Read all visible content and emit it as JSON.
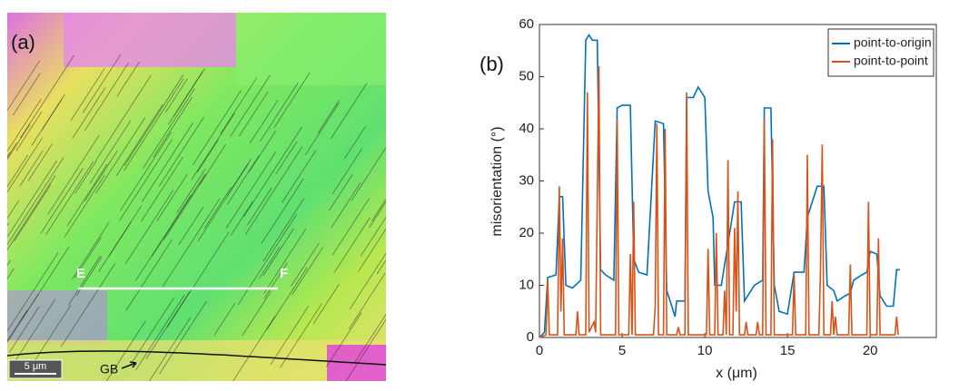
{
  "panel_a": {
    "label": "(a)",
    "start": "E",
    "end": "F",
    "annotation": "GB",
    "scale_bar": "5 μm"
  },
  "chart_data": {
    "type": "line",
    "panel_label": "(b)",
    "x_label": "x (μm)",
    "y_label": "misorientation (°)",
    "xlim": [
      0,
      24
    ],
    "ylim": [
      0,
      60
    ],
    "xticks": [
      0,
      5,
      10,
      15,
      20
    ],
    "yticks": [
      0,
      10,
      20,
      30,
      40,
      50,
      60
    ],
    "legend": "upper right",
    "series": [
      {
        "name": "point-to-origin",
        "color": "#0072bd",
        "x": [
          0,
          0.3,
          0.5,
          1,
          1.2,
          1.4,
          1.6,
          2,
          2.5,
          2.8,
          3,
          3.2,
          3.5,
          3.7,
          4,
          4.5,
          4.7,
          5,
          5.5,
          5.7,
          6,
          6.5,
          7,
          7.5,
          7.7,
          8,
          8.2,
          8.3,
          8.8,
          8.9,
          9.3,
          9.6,
          10,
          10.2,
          10.5,
          10.6,
          11,
          11.3,
          11.8,
          12.2,
          12.4,
          13,
          13.5,
          13.6,
          14,
          14.2,
          14.5,
          15,
          15.4,
          16,
          16.2,
          16.5,
          16.8,
          17.2,
          17.4,
          17.8,
          18,
          18.5,
          18.8,
          19,
          19.5,
          19.8,
          20,
          20.4,
          20.6,
          21,
          21.4,
          21.6,
          21.8
        ],
        "values": [
          0,
          1,
          11.5,
          12,
          27,
          27,
          10,
          9.5,
          11,
          57,
          58,
          57,
          57,
          13,
          12,
          11,
          44,
          44.5,
          44.5,
          15,
          12.5,
          12,
          41.5,
          41,
          9,
          6,
          4,
          7,
          7,
          46,
          46,
          48,
          46,
          28,
          23,
          10,
          10,
          16,
          26,
          26,
          7,
          10,
          11,
          44,
          44,
          10,
          5,
          4.5,
          12.5,
          12.5,
          23,
          26,
          29,
          29,
          10,
          9,
          7,
          8,
          8.5,
          11,
          12,
          12.5,
          16.5,
          16,
          8,
          6,
          6,
          13,
          13
        ]
      },
      {
        "name": "point-to-point",
        "color": "#d95319",
        "x": [
          0,
          0.4,
          0.5,
          0.6,
          1.1,
          1.2,
          1.3,
          1.4,
          1.5,
          2.2,
          2.3,
          2.4,
          2.8,
          2.9,
          3,
          3.3,
          3.4,
          3.6,
          3.7,
          4.6,
          4.7,
          4.8,
          5.4,
          5.5,
          5.6,
          5.7,
          5.8,
          6.9,
          7,
          7.1,
          7.2,
          7.5,
          7.6,
          7.7,
          8.3,
          8.4,
          8.5,
          8.8,
          8.9,
          9,
          10.1,
          10.2,
          10.3,
          10.6,
          10.7,
          10.8,
          11.1,
          11.2,
          11.3,
          11.4,
          11.5,
          11.7,
          11.8,
          11.9,
          12,
          12.1,
          12.4,
          12.5,
          12.6,
          13.1,
          13.2,
          13.3,
          13.5,
          13.6,
          13.7,
          14,
          14.1,
          14.2,
          15.3,
          15.4,
          15.5,
          16.1,
          16.2,
          16.3,
          16.9,
          17,
          17.1,
          17.2,
          17.6,
          17.7,
          17.8,
          17.9,
          18,
          18.7,
          18.8,
          18.9,
          19.8,
          19.9,
          20,
          20.4,
          20.5,
          20.6,
          21.5,
          21.6,
          21.7
        ],
        "values": [
          0,
          0.5,
          11,
          0.5,
          0.5,
          29,
          5,
          19,
          0.5,
          0.5,
          5,
          0.5,
          0.5,
          47,
          1,
          3,
          1,
          52,
          0.5,
          0.5,
          42,
          0.5,
          0.5,
          16,
          0.5,
          26,
          0.5,
          0.5,
          6,
          41,
          0.5,
          0.5,
          40,
          0.5,
          0.5,
          2,
          0.5,
          0.5,
          47,
          0.5,
          0.5,
          17,
          0.5,
          0.5,
          20,
          0.5,
          0.5,
          9,
          0.5,
          34,
          0.5,
          0.5,
          21,
          5,
          28,
          0.5,
          0.5,
          3,
          0.5,
          0.5,
          3,
          0.5,
          0.5,
          42,
          0.5,
          0.5,
          38,
          0.5,
          0.5,
          12,
          0.5,
          0.5,
          35,
          0.5,
          0.5,
          13,
          37,
          0.5,
          0.5,
          7,
          0.5,
          4,
          0.5,
          0.5,
          14,
          0.5,
          0.5,
          26,
          0.5,
          0.5,
          19,
          0.5,
          0.5,
          4,
          0.5
        ]
      }
    ]
  }
}
